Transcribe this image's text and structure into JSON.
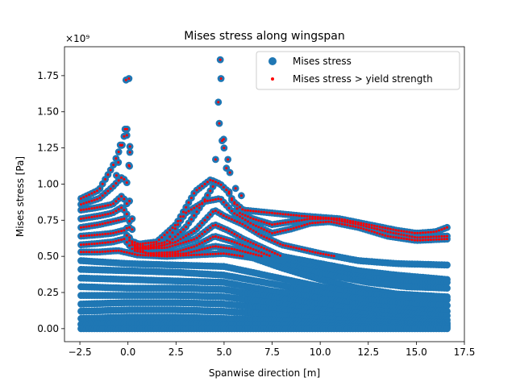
{
  "chart_data": {
    "type": "scatter",
    "title": "Mises stress along wingspan",
    "xlabel": "Spanwise direction [m]",
    "ylabel": "Mises stress [Pa]",
    "y_offset_label": "×10⁹",
    "y_scale": 1000000000.0,
    "xlim": [
      -3.3,
      17.5
    ],
    "ylim": [
      -0.09,
      1.95
    ],
    "x_ticks": [
      -2.5,
      0.0,
      2.5,
      5.0,
      7.5,
      10.0,
      12.5,
      15.0,
      17.5
    ],
    "x_tick_labels": [
      "−2.5",
      "0.0",
      "2.5",
      "5.0",
      "7.5",
      "10.0",
      "12.5",
      "15.0",
      "17.5"
    ],
    "y_ticks": [
      0.0,
      0.25,
      0.5,
      0.75,
      1.0,
      1.25,
      1.5,
      1.75
    ],
    "y_tick_labels": [
      "0.00",
      "0.25",
      "0.50",
      "0.75",
      "1.00",
      "1.25",
      "1.50",
      "1.75"
    ],
    "grid": false,
    "legend_position": "top-right",
    "yield_strength": 0.5,
    "series": [
      {
        "name": "Mises stress",
        "color": "#1f77b4",
        "marker": "circle-large"
      },
      {
        "name": "Mises stress > yield strength",
        "color": "#ff0000",
        "marker": "circle-small"
      }
    ],
    "span_sampling": {
      "x_min": -2.44,
      "x_max": 16.6,
      "step": 0.14
    },
    "stress_curves": [
      {
        "label": "root-spike-1",
        "points": [
          [
            -2.44,
            0.9
          ],
          [
            -1.5,
            0.96
          ],
          [
            -0.8,
            1.12
          ],
          [
            -0.3,
            1.28
          ],
          [
            -0.1,
            1.38
          ],
          [
            0.05,
            1.22
          ],
          [
            0.15,
            0.9
          ],
          [
            0.3,
            0.6
          ],
          [
            1.0,
            0.56
          ],
          [
            2.0,
            0.58
          ],
          [
            3.0,
            0.7
          ],
          [
            3.8,
            0.85
          ],
          [
            4.5,
            1.0
          ],
          [
            4.8,
            1.85
          ],
          [
            5.0,
            1.25
          ],
          [
            5.3,
            0.9
          ],
          [
            6.0,
            0.82
          ],
          [
            7.5,
            0.8
          ],
          [
            9.0,
            0.78
          ],
          [
            10.0,
            0.77
          ],
          [
            11.0,
            0.76
          ],
          [
            12.5,
            0.72
          ],
          [
            14.0,
            0.68
          ],
          [
            15.0,
            0.66
          ],
          [
            16.0,
            0.67
          ],
          [
            16.6,
            0.7
          ]
        ]
      },
      {
        "label": "upper-2",
        "points": [
          [
            -2.44,
            0.86
          ],
          [
            -1.5,
            0.9
          ],
          [
            -0.8,
            0.98
          ],
          [
            -0.3,
            1.05
          ],
          [
            0.0,
            1.0
          ],
          [
            0.15,
            0.78
          ],
          [
            0.3,
            0.58
          ],
          [
            1.5,
            0.6
          ],
          [
            2.5,
            0.72
          ],
          [
            3.5,
            0.95
          ],
          [
            4.3,
            1.03
          ],
          [
            4.8,
            1.0
          ],
          [
            5.2,
            0.95
          ],
          [
            5.8,
            0.8
          ],
          [
            6.5,
            0.76
          ],
          [
            7.5,
            0.72
          ],
          [
            8.5,
            0.74
          ],
          [
            9.5,
            0.76
          ],
          [
            10.5,
            0.76
          ],
          [
            12.0,
            0.72
          ],
          [
            13.5,
            0.67
          ],
          [
            15.0,
            0.63
          ],
          [
            16.6,
            0.64
          ]
        ]
      },
      {
        "label": "upper-3",
        "points": [
          [
            -2.44,
            0.82
          ],
          [
            -1.5,
            0.84
          ],
          [
            -0.8,
            0.86
          ],
          [
            -0.3,
            0.92
          ],
          [
            0.0,
            0.85
          ],
          [
            0.15,
            0.65
          ],
          [
            0.3,
            0.55
          ],
          [
            2.0,
            0.6
          ],
          [
            3.0,
            0.8
          ],
          [
            4.0,
            0.88
          ],
          [
            4.8,
            0.9
          ],
          [
            5.5,
            0.8
          ],
          [
            6.5,
            0.72
          ],
          [
            7.5,
            0.66
          ],
          [
            8.5,
            0.69
          ],
          [
            9.5,
            0.73
          ],
          [
            10.5,
            0.74
          ],
          [
            12.0,
            0.7
          ],
          [
            13.5,
            0.64
          ],
          [
            15.0,
            0.61
          ],
          [
            16.6,
            0.62
          ]
        ]
      },
      {
        "label": "upper-4",
        "points": [
          [
            -2.44,
            0.76
          ],
          [
            -1.5,
            0.78
          ],
          [
            -0.8,
            0.8
          ],
          [
            -0.3,
            0.84
          ],
          [
            0.0,
            0.78
          ],
          [
            0.2,
            0.58
          ],
          [
            1.0,
            0.55
          ],
          [
            2.5,
            0.6
          ],
          [
            3.5,
            0.68
          ],
          [
            4.5,
            0.82
          ],
          [
            5.0,
            0.78
          ],
          [
            6.0,
            0.72
          ],
          [
            7.0,
            0.64
          ],
          [
            8.0,
            0.58
          ],
          [
            9.0,
            0.55
          ],
          [
            10.0,
            0.52
          ],
          [
            12.0,
            0.47
          ],
          [
            14.0,
            0.45
          ],
          [
            16.6,
            0.44
          ]
        ]
      },
      {
        "label": "upper-5",
        "points": [
          [
            -2.44,
            0.7
          ],
          [
            -1.5,
            0.72
          ],
          [
            -0.8,
            0.74
          ],
          [
            -0.2,
            0.76
          ],
          [
            0.1,
            0.62
          ],
          [
            0.4,
            0.55
          ],
          [
            2.0,
            0.56
          ],
          [
            3.5,
            0.62
          ],
          [
            4.5,
            0.72
          ],
          [
            5.2,
            0.68
          ],
          [
            6.0,
            0.62
          ],
          [
            7.0,
            0.56
          ],
          [
            8.0,
            0.5
          ],
          [
            10.0,
            0.45
          ],
          [
            12.0,
            0.4
          ],
          [
            14.0,
            0.37
          ],
          [
            16.6,
            0.34
          ]
        ]
      },
      {
        "label": "upper-6",
        "points": [
          [
            -2.44,
            0.64
          ],
          [
            -1.5,
            0.65
          ],
          [
            -0.8,
            0.66
          ],
          [
            -0.2,
            0.68
          ],
          [
            0.2,
            0.58
          ],
          [
            1.0,
            0.52
          ],
          [
            2.5,
            0.53
          ],
          [
            3.5,
            0.57
          ],
          [
            4.5,
            0.64
          ],
          [
            5.5,
            0.6
          ],
          [
            6.5,
            0.55
          ],
          [
            8.0,
            0.47
          ],
          [
            10.0,
            0.41
          ],
          [
            12.0,
            0.36
          ],
          [
            14.0,
            0.33
          ],
          [
            16.6,
            0.32
          ]
        ]
      },
      {
        "label": "upper-7",
        "points": [
          [
            -2.44,
            0.58
          ],
          [
            -1.5,
            0.59
          ],
          [
            -0.8,
            0.6
          ],
          [
            -0.2,
            0.62
          ],
          [
            0.3,
            0.54
          ],
          [
            1.5,
            0.51
          ],
          [
            3.0,
            0.52
          ],
          [
            4.5,
            0.57
          ],
          [
            5.5,
            0.55
          ],
          [
            7.0,
            0.5
          ],
          [
            8.5,
            0.43
          ],
          [
            10.5,
            0.37
          ],
          [
            12.5,
            0.32
          ],
          [
            14.5,
            0.29
          ],
          [
            16.6,
            0.28
          ]
        ]
      },
      {
        "label": "upper-8",
        "points": [
          [
            -2.44,
            0.53
          ],
          [
            -1.5,
            0.53
          ],
          [
            -0.5,
            0.54
          ],
          [
            0.5,
            0.51
          ],
          [
            2.0,
            0.5
          ],
          [
            3.5,
            0.51
          ],
          [
            5.0,
            0.52
          ],
          [
            6.5,
            0.49
          ],
          [
            8.0,
            0.42
          ],
          [
            10.0,
            0.34
          ],
          [
            12.0,
            0.28
          ],
          [
            14.0,
            0.24
          ],
          [
            16.6,
            0.22
          ]
        ]
      },
      {
        "label": "band-1",
        "points": [
          [
            -2.44,
            0.47
          ],
          [
            0.0,
            0.45
          ],
          [
            2.5,
            0.44
          ],
          [
            5.0,
            0.43
          ],
          [
            7.5,
            0.36
          ],
          [
            10.0,
            0.29
          ],
          [
            12.5,
            0.24
          ],
          [
            15.0,
            0.21
          ],
          [
            16.6,
            0.2
          ]
        ]
      },
      {
        "label": "band-2",
        "points": [
          [
            -2.44,
            0.41
          ],
          [
            0.0,
            0.4
          ],
          [
            2.5,
            0.39
          ],
          [
            5.0,
            0.37
          ],
          [
            7.5,
            0.31
          ],
          [
            10.0,
            0.25
          ],
          [
            12.5,
            0.2
          ],
          [
            15.0,
            0.17
          ],
          [
            16.6,
            0.16
          ]
        ]
      },
      {
        "label": "band-3",
        "points": [
          [
            -2.44,
            0.35
          ],
          [
            0.0,
            0.34
          ],
          [
            2.5,
            0.33
          ],
          [
            5.0,
            0.32
          ],
          [
            7.5,
            0.26
          ],
          [
            10.0,
            0.21
          ],
          [
            12.5,
            0.16
          ],
          [
            15.0,
            0.13
          ],
          [
            16.6,
            0.12
          ]
        ]
      },
      {
        "label": "band-4",
        "points": [
          [
            -2.44,
            0.29
          ],
          [
            0.0,
            0.28
          ],
          [
            2.5,
            0.28
          ],
          [
            5.0,
            0.27
          ],
          [
            7.5,
            0.22
          ],
          [
            10.0,
            0.17
          ],
          [
            12.5,
            0.13
          ],
          [
            15.0,
            0.1
          ],
          [
            16.6,
            0.09
          ]
        ]
      },
      {
        "label": "band-5",
        "points": [
          [
            -2.44,
            0.23
          ],
          [
            0.0,
            0.23
          ],
          [
            2.5,
            0.23
          ],
          [
            5.0,
            0.22
          ],
          [
            7.5,
            0.18
          ],
          [
            10.0,
            0.13
          ],
          [
            12.5,
            0.1
          ],
          [
            15.0,
            0.07
          ],
          [
            16.6,
            0.06
          ]
        ]
      },
      {
        "label": "band-6",
        "points": [
          [
            -2.44,
            0.17
          ],
          [
            0.0,
            0.18
          ],
          [
            2.5,
            0.18
          ],
          [
            5.0,
            0.17
          ],
          [
            7.5,
            0.14
          ],
          [
            10.0,
            0.1
          ],
          [
            12.5,
            0.07
          ],
          [
            15.0,
            0.05
          ],
          [
            16.6,
            0.04
          ]
        ]
      },
      {
        "label": "band-7",
        "points": [
          [
            -2.44,
            0.12
          ],
          [
            0.0,
            0.13
          ],
          [
            2.5,
            0.13
          ],
          [
            5.0,
            0.12
          ],
          [
            7.5,
            0.1
          ],
          [
            10.0,
            0.07
          ],
          [
            12.5,
            0.05
          ],
          [
            15.0,
            0.03
          ],
          [
            16.6,
            0.03
          ]
        ]
      },
      {
        "label": "band-8",
        "points": [
          [
            -2.44,
            0.07
          ],
          [
            0.0,
            0.08
          ],
          [
            2.5,
            0.08
          ],
          [
            5.0,
            0.07
          ],
          [
            7.5,
            0.06
          ],
          [
            10.0,
            0.04
          ],
          [
            12.5,
            0.03
          ],
          [
            15.0,
            0.02
          ],
          [
            16.6,
            0.02
          ]
        ]
      },
      {
        "label": "band-9",
        "points": [
          [
            -2.44,
            0.03
          ],
          [
            0.0,
            0.04
          ],
          [
            2.5,
            0.04
          ],
          [
            5.0,
            0.03
          ],
          [
            7.5,
            0.03
          ],
          [
            10.0,
            0.02
          ],
          [
            12.5,
            0.01
          ],
          [
            15.0,
            0.01
          ],
          [
            16.6,
            0.01
          ]
        ]
      },
      {
        "label": "band-10",
        "points": [
          [
            -2.44,
            0.0
          ],
          [
            16.6,
            0.0
          ]
        ]
      }
    ],
    "isolated_points": [
      [
        -0.1,
        1.72
      ],
      [
        0.05,
        1.73
      ],
      [
        4.8,
        1.86
      ],
      [
        4.75,
        1.42
      ],
      [
        4.9,
        1.3
      ],
      [
        5.0,
        1.25
      ],
      [
        5.2,
        1.17
      ],
      [
        -0.15,
        1.38
      ],
      [
        -0.05,
        1.38
      ],
      [
        -0.4,
        1.27
      ],
      [
        -0.3,
        1.27
      ],
      [
        0.1,
        1.26
      ],
      [
        0.1,
        1.22
      ],
      [
        5.3,
        1.08
      ],
      [
        5.6,
        0.97
      ],
      [
        5.9,
        0.92
      ],
      [
        -0.5,
        1.15
      ],
      [
        -0.6,
        1.06
      ],
      [
        0.05,
        1.13
      ]
    ]
  }
}
